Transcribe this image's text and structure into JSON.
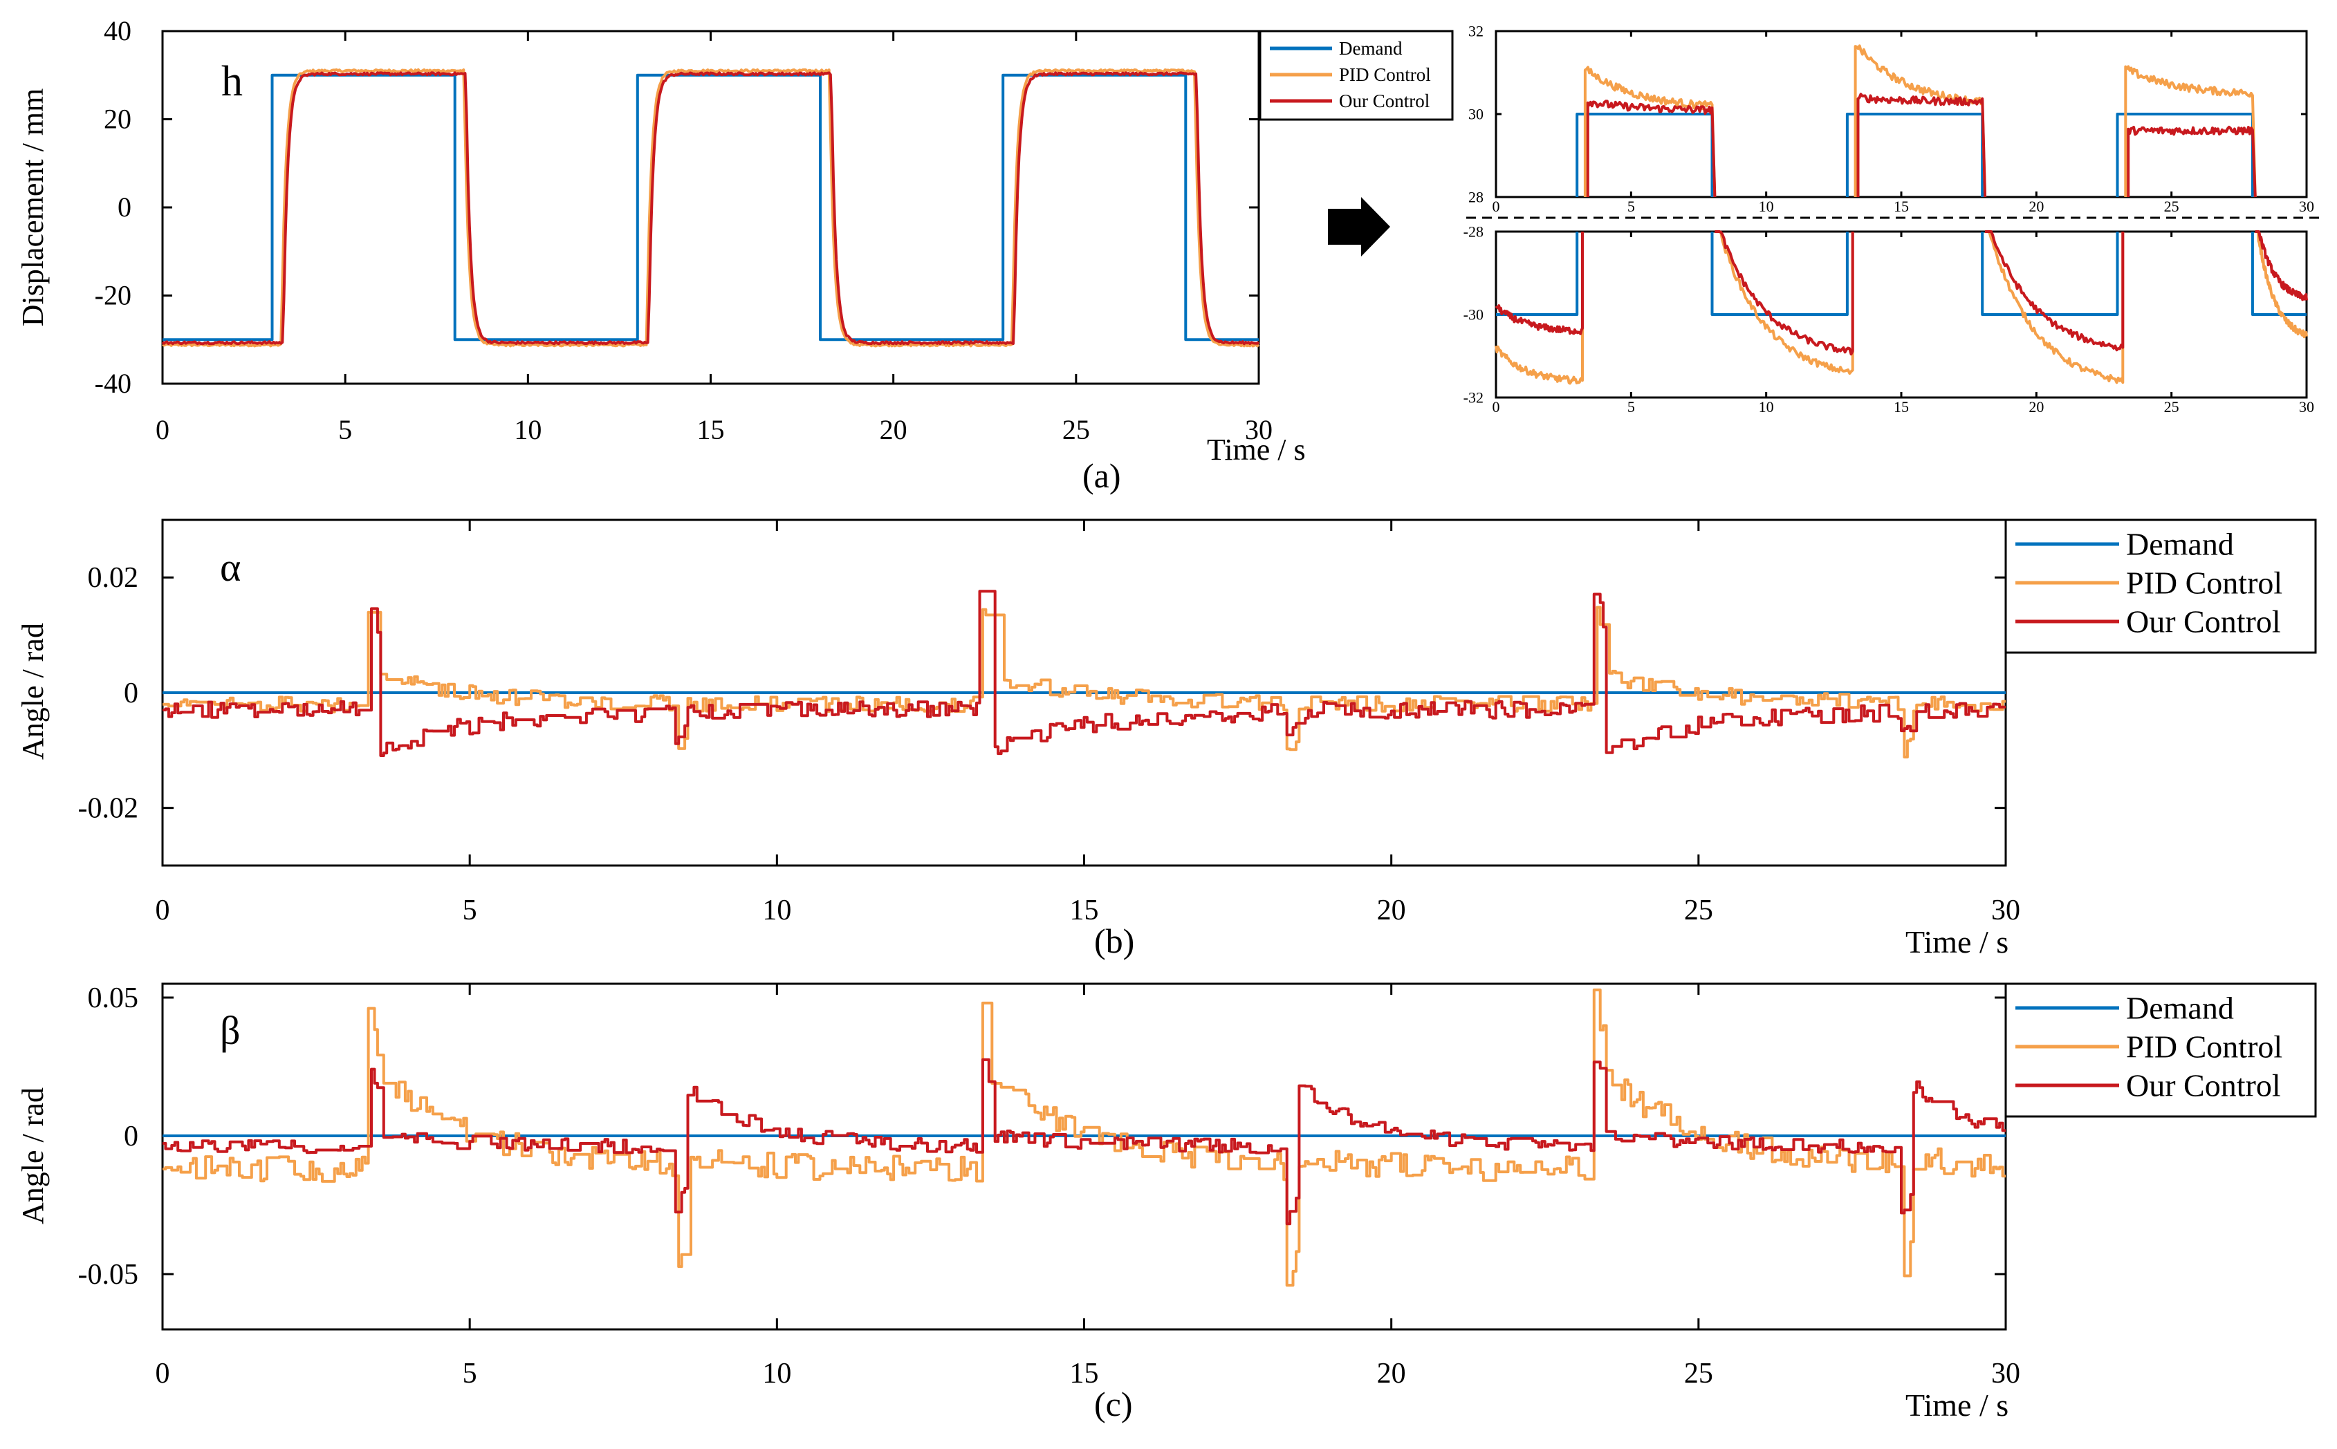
{
  "colors": {
    "demand": "#0072BD",
    "pid": "#F5A04A",
    "ours": "#C8191E",
    "axis": "#000000"
  },
  "arrow": {
    "icon": "right-arrow-icon"
  },
  "chart_data": [
    {
      "id": "a",
      "type": "line",
      "panel_label": "(a)",
      "symbol": "h",
      "title": "",
      "xlabel": "Time / s",
      "ylabel": "Displacement / mm",
      "xlim": [
        0,
        30
      ],
      "ylim": [
        -40,
        40
      ],
      "xticks": [
        0,
        5,
        10,
        15,
        20,
        25,
        30
      ],
      "yticks": [
        -40,
        -20,
        0,
        20,
        40
      ],
      "yticklabels": [
        "-40",
        "-20",
        "0",
        "20",
        "40"
      ],
      "grid": false,
      "legend_position": "top-right",
      "legend": [
        "Demand",
        "PID Control",
        "Our Control"
      ],
      "events": {
        "rise": [
          3,
          13,
          23
        ],
        "fall": [
          8,
          18,
          28
        ]
      },
      "series": [
        {
          "name": "Demand",
          "key": "demand",
          "steady_high": 30,
          "steady_low": -30,
          "lag": 0
        },
        {
          "name": "PID Control",
          "key": "pid",
          "steady_high": 31,
          "steady_low": -31.2,
          "lag": 0.25
        },
        {
          "name": "Our Control",
          "key": "ours",
          "steady_high": 30.3,
          "steady_low": -30.7,
          "lag": 0.3
        }
      ]
    },
    {
      "id": "a-zoom-high",
      "type": "line",
      "panel_label": "",
      "title": "",
      "xlabel": "",
      "ylabel": "",
      "xlim": [
        0,
        30
      ],
      "ylim": [
        28,
        32
      ],
      "xticks": [
        0,
        5,
        10,
        15,
        20,
        25,
        30
      ],
      "yticks": [
        28,
        30,
        32
      ],
      "yticklabels": [
        "28",
        "30",
        "32"
      ],
      "grid": false,
      "series": [
        {
          "name": "Demand",
          "key": "demand",
          "segments": [
            {
              "start": 3,
              "end": 8,
              "value": 30
            },
            {
              "start": 13,
              "end": 18,
              "value": 30
            },
            {
              "start": 23,
              "end": 28,
              "value": 30
            }
          ]
        },
        {
          "name": "PID Control",
          "key": "pid",
          "segments": [
            {
              "start": 3.3,
              "end": 8.1,
              "peak": 31.1,
              "final": 30.2
            },
            {
              "start": 13.3,
              "end": 18.1,
              "peak": 31.7,
              "final": 30.3
            },
            {
              "start": 23.3,
              "end": 28.1,
              "peak": 31.1,
              "final": 30.5
            }
          ]
        },
        {
          "name": "Our Control",
          "key": "ours",
          "segments": [
            {
              "start": 3.4,
              "end": 8.1,
              "peak": 30.3,
              "final": 30.1
            },
            {
              "start": 13.4,
              "end": 18.1,
              "peak": 30.4,
              "final": 30.3
            },
            {
              "start": 23.4,
              "end": 28.1,
              "peak": 29.6,
              "final": 29.6
            }
          ]
        }
      ]
    },
    {
      "id": "a-zoom-low",
      "type": "line",
      "panel_label": "",
      "title": "",
      "xlabel": "",
      "ylabel": "",
      "xlim": [
        0,
        30
      ],
      "ylim": [
        -32,
        -28
      ],
      "xticks": [
        0,
        5,
        10,
        15,
        20,
        25,
        30
      ],
      "yticks": [
        -28,
        -30,
        -32
      ],
      "yticklabels": [
        "-28",
        "-30",
        "-32"
      ],
      "grid": false,
      "series": [
        {
          "name": "Demand",
          "key": "demand",
          "segments": [
            {
              "start": 0,
              "end": 3,
              "value": -30
            },
            {
              "start": 8,
              "end": 13,
              "value": -30
            },
            {
              "start": 18,
              "end": 23,
              "value": -30
            },
            {
              "start": 28,
              "end": 30,
              "value": -30
            }
          ]
        },
        {
          "name": "PID Control",
          "key": "pid",
          "segments": [
            {
              "start": 0,
              "end": 3.2,
              "from": -30.8,
              "to": -31.6
            },
            {
              "start": 8.1,
              "end": 13.2,
              "from": -27.6,
              "to": -31.4
            },
            {
              "start": 18.1,
              "end": 23.2,
              "from": -27.6,
              "to": -31.6
            },
            {
              "start": 28.1,
              "end": 30,
              "from": -27.6,
              "to": -30.5
            }
          ]
        },
        {
          "name": "Our Control",
          "key": "ours",
          "segments": [
            {
              "start": 0,
              "end": 3.2,
              "from": -29.8,
              "to": -30.4
            },
            {
              "start": 8.1,
              "end": 13.2,
              "from": -27.6,
              "to": -30.9
            },
            {
              "start": 18.1,
              "end": 23.2,
              "from": -27.6,
              "to": -30.8
            },
            {
              "start": 28.1,
              "end": 30,
              "from": -27.6,
              "to": -29.6
            }
          ]
        }
      ]
    },
    {
      "id": "b",
      "type": "line",
      "panel_label": "(b)",
      "symbol": "α",
      "title": "",
      "xlabel": "Time / s",
      "ylabel": "Angle / rad",
      "xlim": [
        0,
        30
      ],
      "ylim": [
        -0.03,
        0.03
      ],
      "xticks": [
        0,
        5,
        10,
        15,
        20,
        25,
        30
      ],
      "yticks": [
        0.02,
        0,
        -0.02
      ],
      "yticklabels": [
        "0.02",
        "0",
        "-0.02"
      ],
      "grid": false,
      "legend_position": "top-right",
      "legend": [
        "Demand",
        "PID Control",
        "Our Control"
      ],
      "events": {
        "rise": [
          3.3,
          13.3,
          23.3
        ],
        "fall": [
          8.3,
          18.3,
          28.3
        ]
      },
      "series": [
        {
          "name": "Demand",
          "key": "demand",
          "constant": 0
        },
        {
          "name": "PID Control",
          "key": "pid",
          "rise_peak": 0.015,
          "rise_tail": 0.003,
          "fall_peak": -0.011,
          "baseline": -0.002
        },
        {
          "name": "Our Control",
          "key": "ours",
          "rise_peak": 0.017,
          "rise_tail": -0.01,
          "fall_peak": -0.008,
          "baseline": -0.003
        }
      ]
    },
    {
      "id": "c",
      "type": "line",
      "panel_label": "(c)",
      "symbol": "β",
      "title": "",
      "xlabel": "Time / s",
      "ylabel": "Angle / rad",
      "xlim": [
        0,
        30
      ],
      "ylim": [
        -0.07,
        0.055
      ],
      "xticks": [
        0,
        5,
        10,
        15,
        20,
        25,
        30
      ],
      "yticks": [
        0.05,
        0,
        -0.05
      ],
      "yticklabels": [
        "0.05",
        "0",
        "-0.05"
      ],
      "grid": false,
      "legend_position": "top-right",
      "legend": [
        "Demand",
        "PID Control",
        "Our Control"
      ],
      "events": {
        "rise": [
          3.3,
          13.3,
          23.3
        ],
        "fall": [
          8.3,
          18.3,
          28.3
        ]
      },
      "series": [
        {
          "name": "Demand",
          "key": "demand",
          "constant": 0
        },
        {
          "name": "PID Control",
          "key": "pid",
          "rise_peak": 0.05,
          "rise_tail": 0.022,
          "fall_peak": -0.056,
          "fall_tail": -0.008,
          "baseline": -0.012
        },
        {
          "name": "Our Control",
          "key": "ours",
          "rise_peak": 0.028,
          "fall_peak": -0.03,
          "fall_tail": 0.018,
          "baseline": -0.004
        }
      ]
    }
  ]
}
